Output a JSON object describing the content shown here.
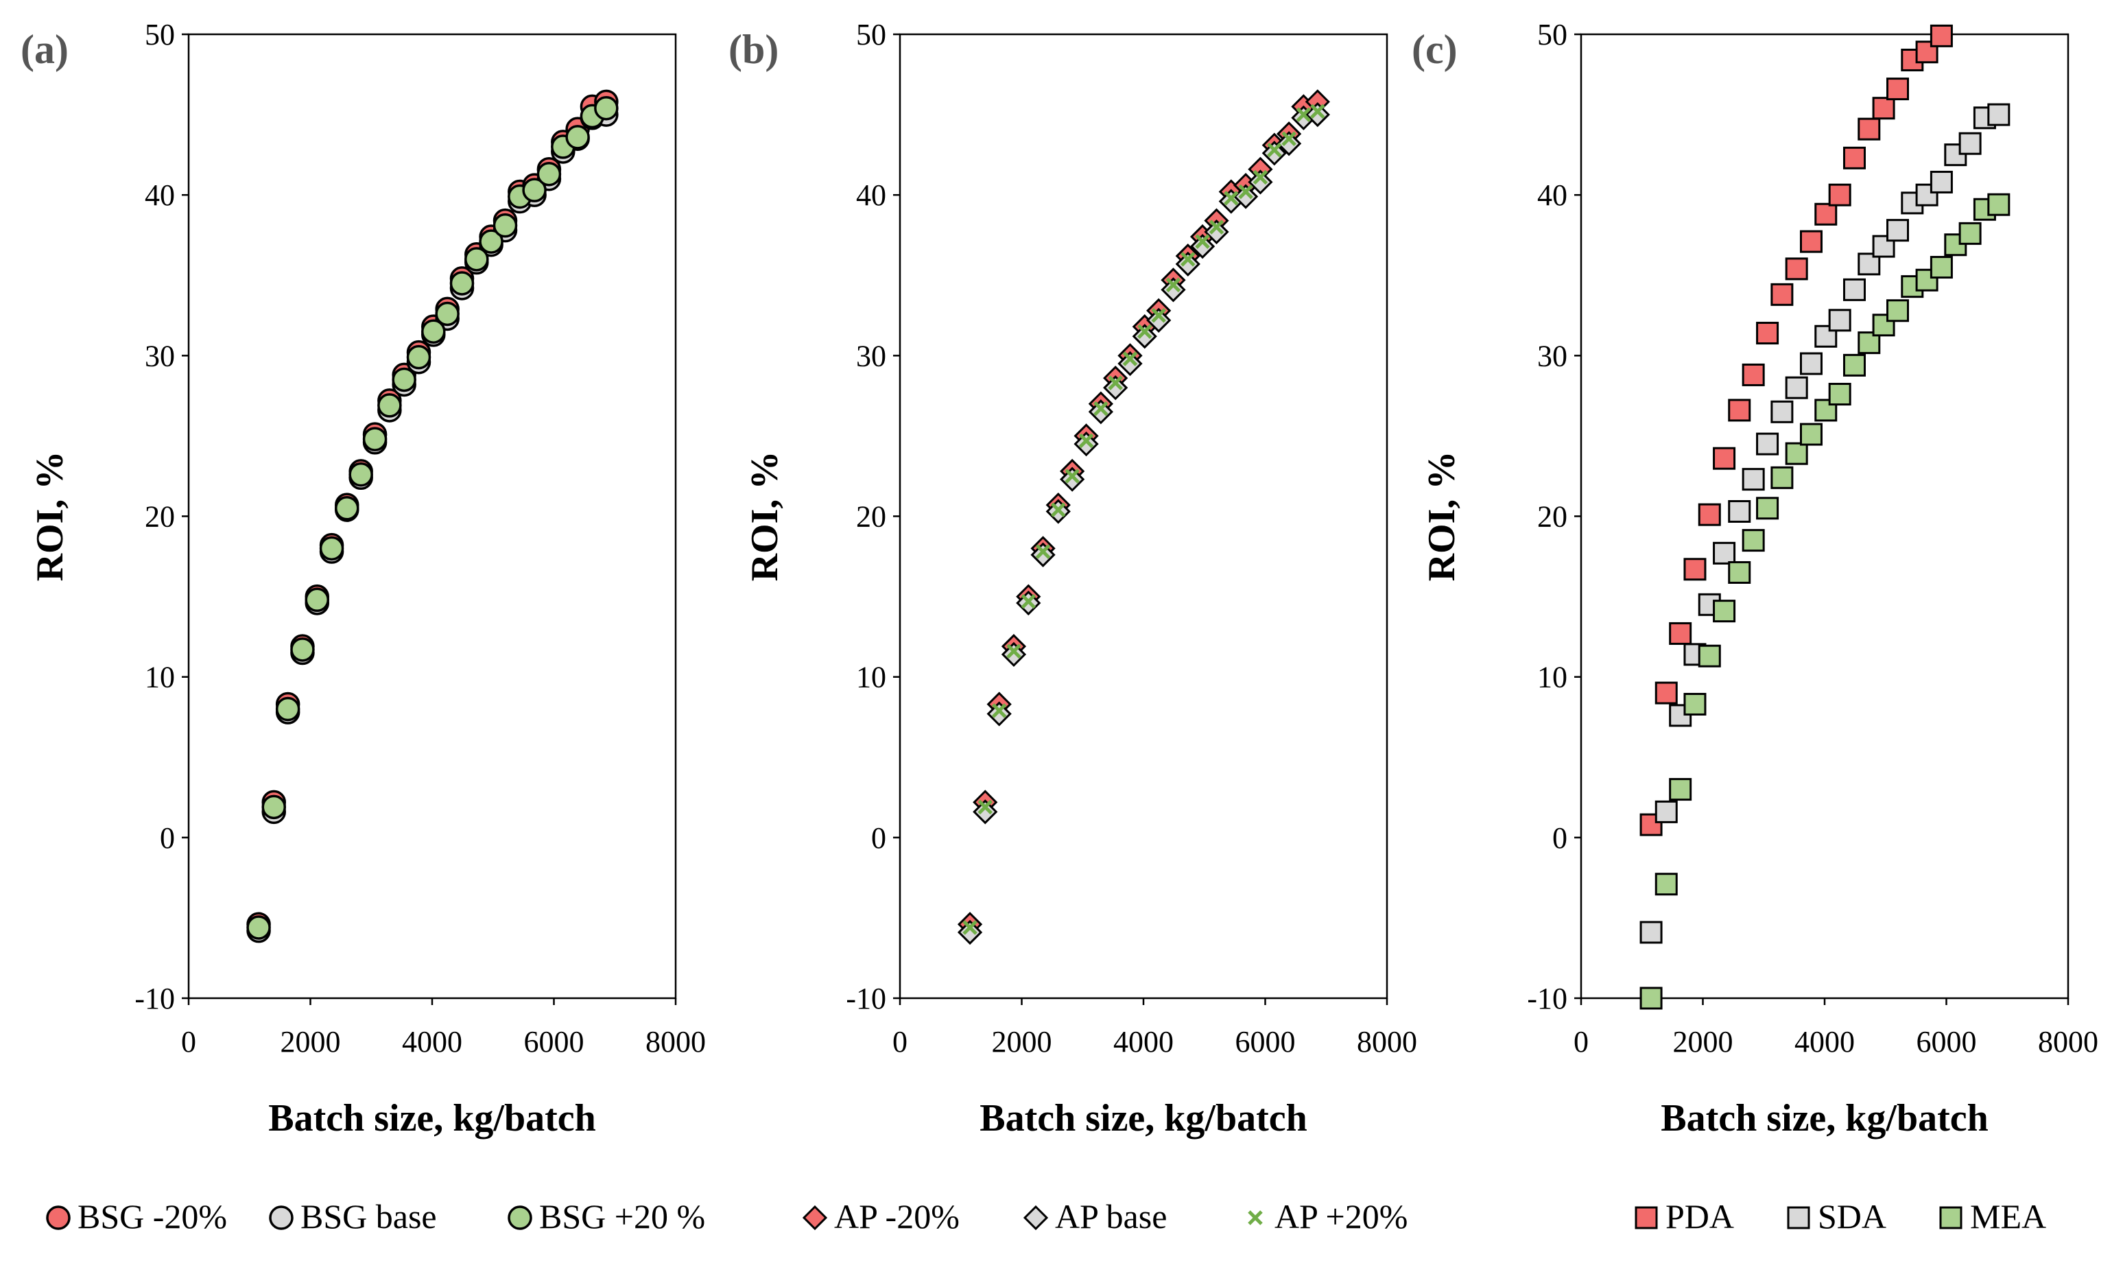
{
  "chart_data": [
    {
      "id": "a",
      "panel_label": "(a)",
      "type": "scatter",
      "xlabel": "Batch size, kg/batch",
      "ylabel": "ROI, %",
      "xlim": [
        0,
        8000
      ],
      "ylim": [
        -10,
        50
      ],
      "xticks": [
        "0",
        "2000",
        "4000",
        "6000",
        "8000"
      ],
      "yticks": [
        "-10",
        "0",
        "10",
        "20",
        "30",
        "40",
        "50"
      ],
      "x": [
        1150,
        1400,
        1630,
        1870,
        2110,
        2350,
        2600,
        2830,
        3060,
        3300,
        3540,
        3780,
        4020,
        4250,
        4490,
        4730,
        4970,
        5200,
        5440,
        5680,
        5920,
        6150,
        6390,
        6630,
        6860
      ],
      "series": [
        {
          "name": "BSG -20%",
          "marker": "circle",
          "color": "#f26b6b",
          "values": [
            -5.4,
            2.2,
            8.3,
            11.9,
            15.0,
            18.2,
            20.7,
            22.8,
            25.1,
            27.2,
            28.8,
            30.2,
            31.8,
            32.9,
            34.8,
            36.3,
            37.4,
            38.4,
            40.2,
            40.6,
            41.6,
            43.3,
            44.1,
            45.5,
            45.8
          ]
        },
        {
          "name": "BSG base",
          "marker": "circle",
          "color": "#d9d9d9",
          "values": [
            -5.8,
            1.6,
            7.8,
            11.5,
            14.6,
            17.8,
            20.4,
            22.4,
            24.6,
            26.6,
            28.2,
            29.6,
            31.3,
            32.3,
            34.2,
            35.8,
            36.9,
            37.8,
            39.6,
            40.0,
            41.0,
            42.7,
            43.5,
            44.8,
            45.0
          ]
        },
        {
          "name": "BSG +20 %",
          "marker": "circle",
          "color": "#a9d18e",
          "values": [
            -5.6,
            1.9,
            8.0,
            11.7,
            14.8,
            18.0,
            20.5,
            22.6,
            24.8,
            26.9,
            28.5,
            29.9,
            31.5,
            32.6,
            34.5,
            36.0,
            37.1,
            38.1,
            39.9,
            40.3,
            41.3,
            43.0,
            43.6,
            44.9,
            45.4
          ]
        }
      ]
    },
    {
      "id": "b",
      "panel_label": "(b)",
      "type": "scatter",
      "xlabel": "Batch size, kg/batch",
      "ylabel": "ROI, %",
      "xlim": [
        0,
        8000
      ],
      "ylim": [
        -10,
        50
      ],
      "xticks": [
        "0",
        "2000",
        "4000",
        "6000",
        "8000"
      ],
      "yticks": [
        "-10",
        "0",
        "10",
        "20",
        "30",
        "40",
        "50"
      ],
      "x": [
        1150,
        1400,
        1630,
        1870,
        2110,
        2350,
        2600,
        2830,
        3060,
        3300,
        3540,
        3780,
        4020,
        4250,
        4490,
        4730,
        4970,
        5200,
        5440,
        5680,
        5920,
        6150,
        6390,
        6630,
        6860
      ],
      "series": [
        {
          "name": "AP -20%",
          "marker": "diamond",
          "color": "#f26b6b",
          "values": [
            -5.4,
            2.2,
            8.3,
            11.9,
            15.0,
            18.0,
            20.7,
            22.8,
            25.0,
            27.0,
            28.6,
            30.0,
            31.8,
            32.8,
            34.7,
            36.2,
            37.4,
            38.4,
            40.2,
            40.6,
            41.6,
            43.1,
            43.8,
            45.5,
            45.8
          ]
        },
        {
          "name": "AP base",
          "marker": "diamond",
          "color": "#d9d9d9",
          "values": [
            -5.9,
            1.6,
            7.7,
            11.4,
            14.6,
            17.6,
            20.3,
            22.3,
            24.5,
            26.5,
            28.0,
            29.5,
            31.2,
            32.2,
            34.1,
            35.7,
            36.8,
            37.7,
            39.6,
            39.9,
            40.8,
            42.6,
            43.2,
            44.8,
            45.0
          ]
        },
        {
          "name": "AP +20%",
          "marker": "x",
          "color": "#70ad47",
          "values": [
            -5.6,
            1.9,
            7.9,
            11.6,
            14.7,
            17.8,
            20.4,
            22.5,
            24.7,
            26.7,
            28.3,
            29.8,
            31.5,
            32.5,
            34.4,
            36.0,
            37.1,
            38.0,
            39.8,
            40.2,
            41.1,
            42.8,
            43.5,
            45.0,
            45.2
          ]
        }
      ]
    },
    {
      "id": "c",
      "panel_label": "(c)",
      "type": "scatter",
      "xlabel": "Batch size, kg/batch",
      "ylabel": "ROI, %",
      "xlim": [
        0,
        8000
      ],
      "ylim": [
        -10,
        50
      ],
      "xticks": [
        "0",
        "2000",
        "4000",
        "6000",
        "8000"
      ],
      "yticks": [
        "-10",
        "0",
        "10",
        "20",
        "30",
        "40",
        "50"
      ],
      "series": [
        {
          "name": "PDA",
          "marker": "square",
          "color": "#f26b6b",
          "x": [
            1150,
            1400,
            1630,
            1870,
            2110,
            2350,
            2600,
            2830,
            3060,
            3300,
            3540,
            3780,
            4020,
            4250,
            4490,
            4730,
            4970,
            5200,
            5440,
            5680,
            5920
          ],
          "values": [
            0.8,
            9.0,
            12.7,
            16.7,
            20.1,
            23.6,
            26.6,
            28.8,
            31.4,
            33.8,
            35.4,
            37.1,
            38.8,
            40.0,
            42.3,
            44.1,
            45.4,
            46.6,
            48.4,
            48.9,
            49.9
          ]
        },
        {
          "name": "SDA",
          "marker": "square",
          "color": "#d9d9d9",
          "x": [
            1150,
            1400,
            1630,
            1870,
            2110,
            2350,
            2600,
            2830,
            3060,
            3300,
            3540,
            3780,
            4020,
            4250,
            4490,
            4730,
            4970,
            5200,
            5440,
            5680,
            5920,
            6150,
            6390,
            6630,
            6860
          ],
          "values": [
            -5.9,
            1.6,
            7.6,
            11.4,
            14.5,
            17.7,
            20.3,
            22.3,
            24.5,
            26.5,
            28.0,
            29.5,
            31.2,
            32.2,
            34.1,
            35.7,
            36.8,
            37.8,
            39.5,
            40.0,
            40.8,
            42.5,
            43.2,
            44.8,
            45.0
          ]
        },
        {
          "name": "MEA",
          "marker": "square",
          "color": "#a9d18e",
          "x": [
            1150,
            1400,
            1630,
            1870,
            2110,
            2350,
            2600,
            2830,
            3060,
            3300,
            3540,
            3780,
            4020,
            4250,
            4490,
            4730,
            4970,
            5200,
            5440,
            5680,
            5920,
            6150,
            6390,
            6630,
            6860
          ],
          "values": [
            -10.0,
            -2.9,
            3.0,
            8.3,
            11.3,
            14.1,
            16.5,
            18.5,
            20.5,
            22.4,
            23.9,
            25.1,
            26.6,
            27.6,
            29.4,
            30.8,
            31.9,
            32.8,
            34.3,
            34.7,
            35.5,
            36.9,
            37.6,
            39.1,
            39.4
          ]
        }
      ]
    }
  ],
  "legends": {
    "bsg": [
      "BSG -20%",
      "BSG base",
      "BSG +20 %"
    ],
    "ap": [
      "AP -20%",
      "AP base",
      "AP +20%"
    ],
    "media": [
      "PDA",
      "SDA",
      "MEA"
    ]
  }
}
